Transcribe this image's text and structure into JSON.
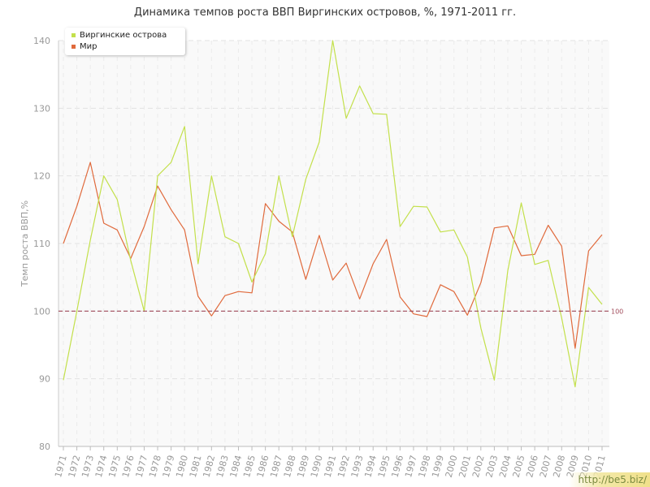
{
  "chart_data": {
    "type": "line",
    "title": "Динамика темпов роста ВВП Виргинских островов, %, 1971-2011 гг.",
    "xlabel": "",
    "ylabel": "Темп роста ВВП,%",
    "ylim": [
      80,
      140
    ],
    "yticks": [
      80,
      90,
      100,
      110,
      120,
      130,
      140
    ],
    "grid": true,
    "legend_position": "top-left",
    "categories": [
      "1971",
      "1972",
      "1973",
      "1974",
      "1975",
      "1976",
      "1977",
      "1978",
      "1979",
      "1980",
      "1981",
      "1982",
      "1983",
      "1984",
      "1985",
      "1986",
      "1987",
      "1988",
      "1989",
      "1990",
      "1991",
      "1992",
      "1993",
      "1994",
      "1995",
      "1996",
      "1997",
      "1998",
      "1999",
      "2000",
      "2001",
      "2002",
      "2003",
      "2004",
      "2005",
      "2006",
      "2007",
      "2008",
      "2009",
      "2010",
      "2011"
    ],
    "series": [
      {
        "name": "Виргинские острова",
        "color": "#c3e04b",
        "values": [
          89.8,
          100,
          110.5,
          120,
          116.5,
          107.5,
          100,
          120,
          122,
          127.3,
          107,
          120,
          111,
          110,
          104.3,
          108.5,
          120,
          111,
          119.5,
          125,
          140,
          128.5,
          133.3,
          129.2,
          129.1,
          112.5,
          115.5,
          115.4,
          111.7,
          112,
          108,
          97.5,
          89.8,
          106,
          116,
          106.9,
          107.5,
          99,
          88.8,
          103.5,
          101
        ]
      },
      {
        "name": "Мир",
        "color": "#e06a3c",
        "values": [
          110,
          115.5,
          122,
          113,
          112,
          107.8,
          112.5,
          118.5,
          115,
          112,
          102.2,
          99.3,
          102.3,
          102.9,
          102.7,
          115.9,
          113.3,
          111.7,
          104.7,
          111.2,
          104.6,
          107.1,
          101.8,
          107,
          110.6,
          102.1,
          99.6,
          99.2,
          103.9,
          102.9,
          99.4,
          104.2,
          112.3,
          112.6,
          108.2,
          108.4,
          112.7,
          109.6,
          94.5,
          108.9,
          111.3
        ]
      }
    ],
    "reference_line": {
      "value": 100,
      "label": "100",
      "color": "#a04a5a"
    }
  },
  "watermark": "http://be5.biz/"
}
